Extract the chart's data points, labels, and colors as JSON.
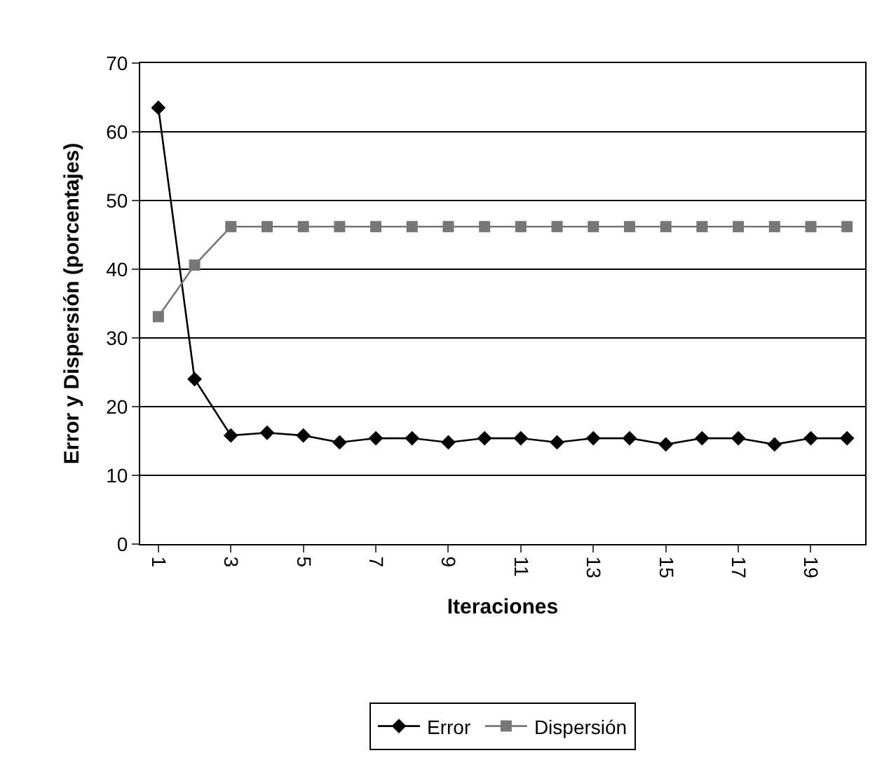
{
  "chart_data": {
    "type": "line",
    "xlabel": "Iteraciones",
    "ylabel": "Error y Dispersión (porcentajes)",
    "categories": [
      "1",
      null,
      "3",
      null,
      "5",
      null,
      "7",
      null,
      "9",
      null,
      "11",
      null,
      "13",
      null,
      "15",
      null,
      "17",
      null,
      "19",
      null
    ],
    "series": [
      {
        "name": "Error",
        "color": "#000000",
        "marker": "diamond",
        "values": [
          63.5,
          24,
          15.8,
          16.2,
          15.8,
          14.8,
          15.4,
          15.4,
          14.8,
          15.4,
          15.4,
          14.8,
          15.4,
          15.4,
          14.5,
          15.4,
          15.4,
          14.5,
          15.4,
          15.4
        ]
      },
      {
        "name": "Dispersión",
        "color": "#777777",
        "marker": "square",
        "values": [
          33.1,
          40.6,
          46.2,
          46.2,
          46.2,
          46.2,
          46.2,
          46.2,
          46.2,
          46.2,
          46.2,
          46.2,
          46.2,
          46.2,
          46.2,
          46.2,
          46.2,
          46.2,
          46.2,
          46.2
        ]
      }
    ],
    "ylim": [
      0,
      70
    ],
    "yticks": [
      0,
      10,
      20,
      30,
      40,
      50,
      60,
      70
    ],
    "grid": "y",
    "legend": "bottom",
    "line_style": "solid"
  }
}
